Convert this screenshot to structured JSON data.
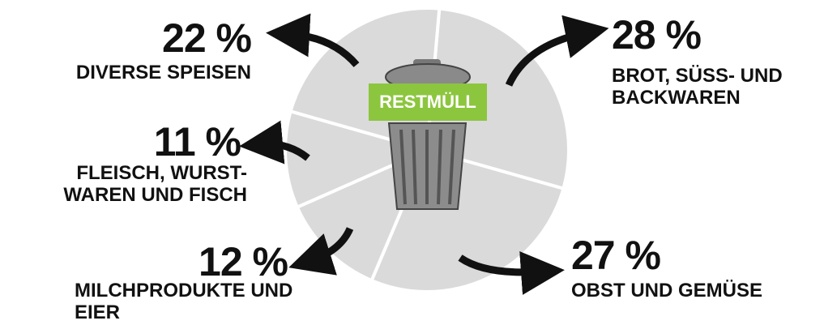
{
  "chart_data": {
    "type": "pie",
    "annotation": "RESTMÜLL",
    "categories": [
      "DIVERSE SPEISEN",
      "BROT, SÜSS- UND BACKWAREN",
      "FLEISCH, WURST-WAREN UND FISCH",
      "MILCHPRODUKTE UND EIER",
      "OBST UND GEMÜSE"
    ],
    "values": [
      22,
      28,
      11,
      12,
      27
    ],
    "value_labels": [
      "22 %",
      "28 %",
      "11 %",
      "12 %",
      "27 %"
    ],
    "color": "#dadada"
  }
}
